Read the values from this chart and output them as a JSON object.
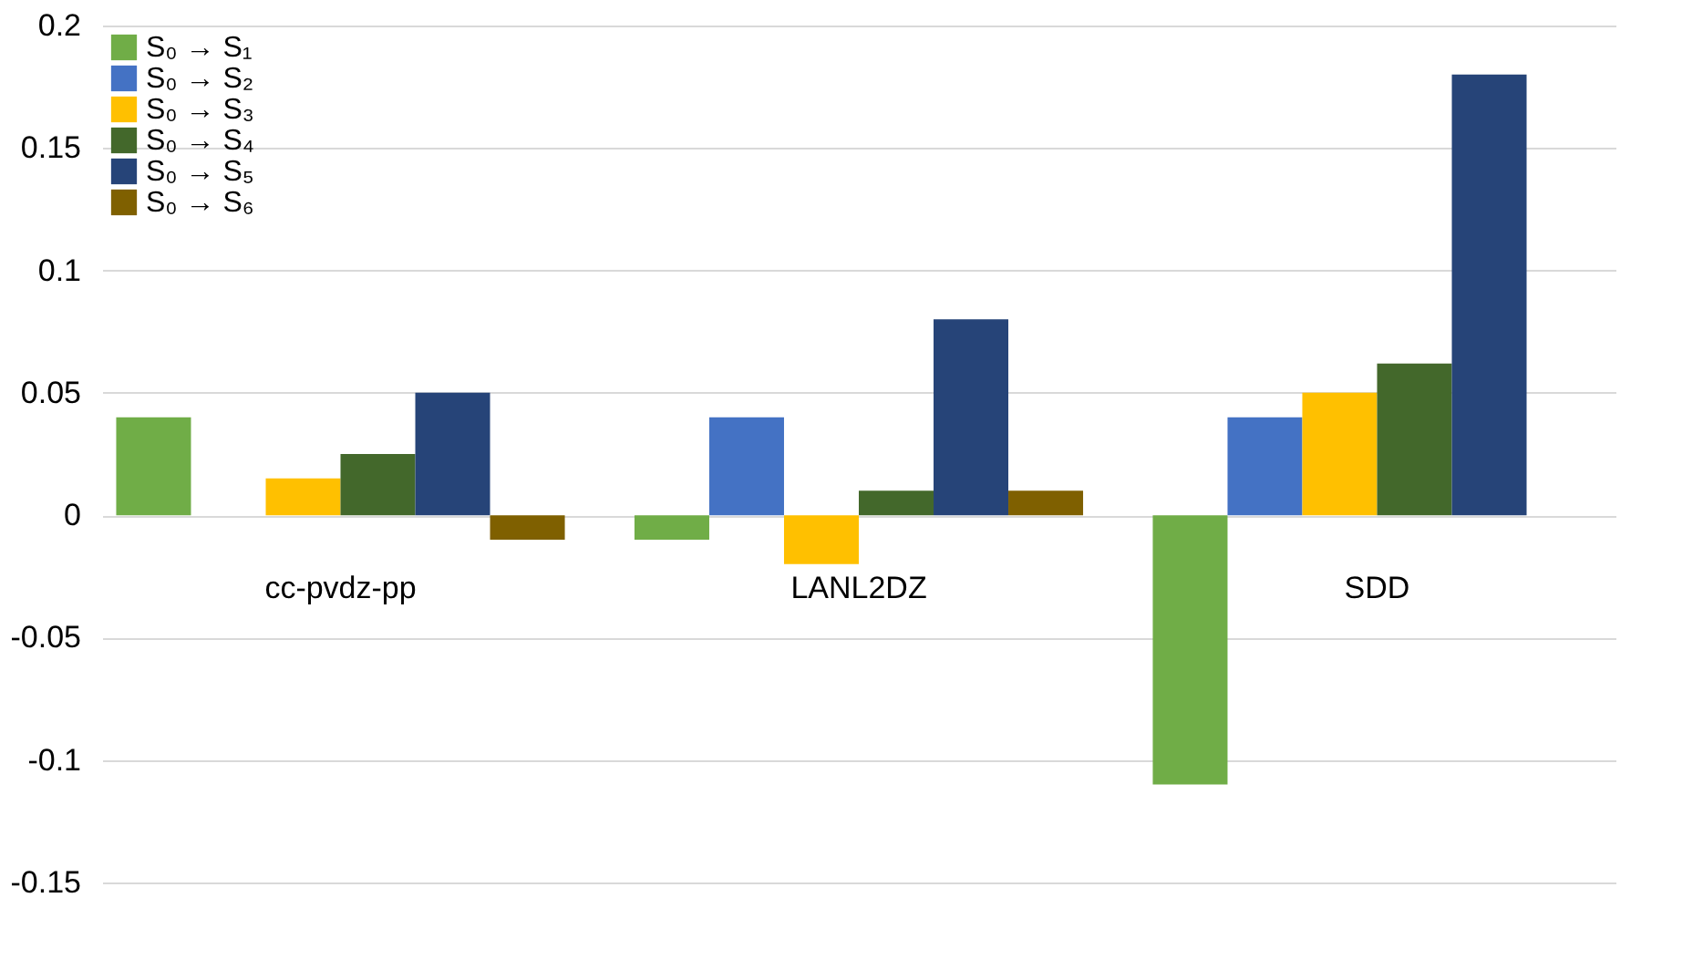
{
  "chart_data": {
    "type": "bar",
    "categories": [
      "cc-pvdz-pp",
      "LANL2DZ",
      "SDD"
    ],
    "series": [
      {
        "name": "S₀ → S₁",
        "color": "#70ad47",
        "values": [
          0.04,
          -0.01,
          -0.11
        ]
      },
      {
        "name": "S₀ → S₂",
        "color": "#4472c4",
        "values": [
          0,
          0.04,
          0.04
        ]
      },
      {
        "name": "S₀ → S₃",
        "color": "#ffc000",
        "values": [
          0.015,
          -0.02,
          0.05
        ]
      },
      {
        "name": "S₀ → S₄",
        "color": "#43682b",
        "values": [
          0.025,
          0.01,
          0.062
        ]
      },
      {
        "name": "S₀ → S₅",
        "color": "#264478",
        "values": [
          0.05,
          0.08,
          0.18
        ]
      },
      {
        "name": "S₀ → S₆",
        "color": "#7f6000",
        "values": [
          -0.01,
          0.01,
          0
        ]
      }
    ],
    "ylim": [
      -0.15,
      0.2
    ],
    "yticks": [
      -0.15,
      -0.1,
      -0.05,
      0,
      0.05,
      0.1,
      0.15,
      0.2
    ],
    "grid": "y",
    "legend": "top left"
  }
}
